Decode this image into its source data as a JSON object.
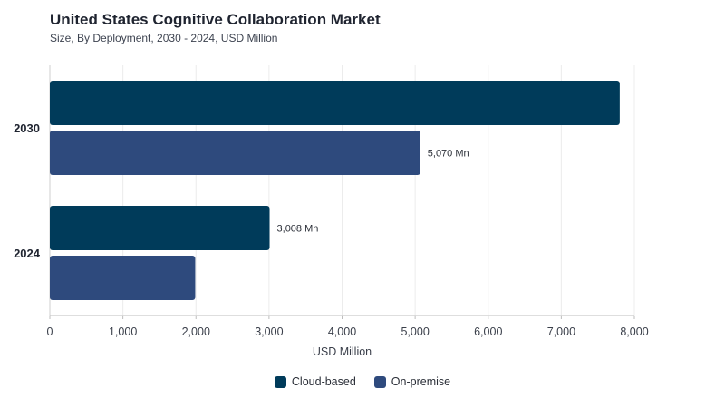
{
  "title": "United States Cognitive Collaboration Market",
  "subtitle": "Size, By Deployment, 2030 - 2024, USD Million",
  "chart_data": {
    "type": "bar",
    "orientation": "horizontal",
    "categories": [
      "2030",
      "2024"
    ],
    "series": [
      {
        "name": "Cloud-based",
        "color": "#003b5a",
        "values": [
          7800,
          3008
        ],
        "labels": [
          "",
          "3,008 Mn"
        ]
      },
      {
        "name": "On-premise",
        "color": "#2e4a7d",
        "values": [
          5070,
          1990
        ],
        "labels": [
          "5,070 Mn",
          ""
        ]
      }
    ],
    "xlabel": "USD Million",
    "xlim": [
      0,
      8000
    ],
    "xticks": [
      0,
      1000,
      2000,
      3000,
      4000,
      5000,
      6000,
      7000,
      8000
    ],
    "xtick_labels": [
      "0",
      "1,000",
      "2,000",
      "3,000",
      "4,000",
      "5,000",
      "6,000",
      "7,000",
      "8,000"
    ],
    "grid": true,
    "legend_position": "bottom"
  }
}
